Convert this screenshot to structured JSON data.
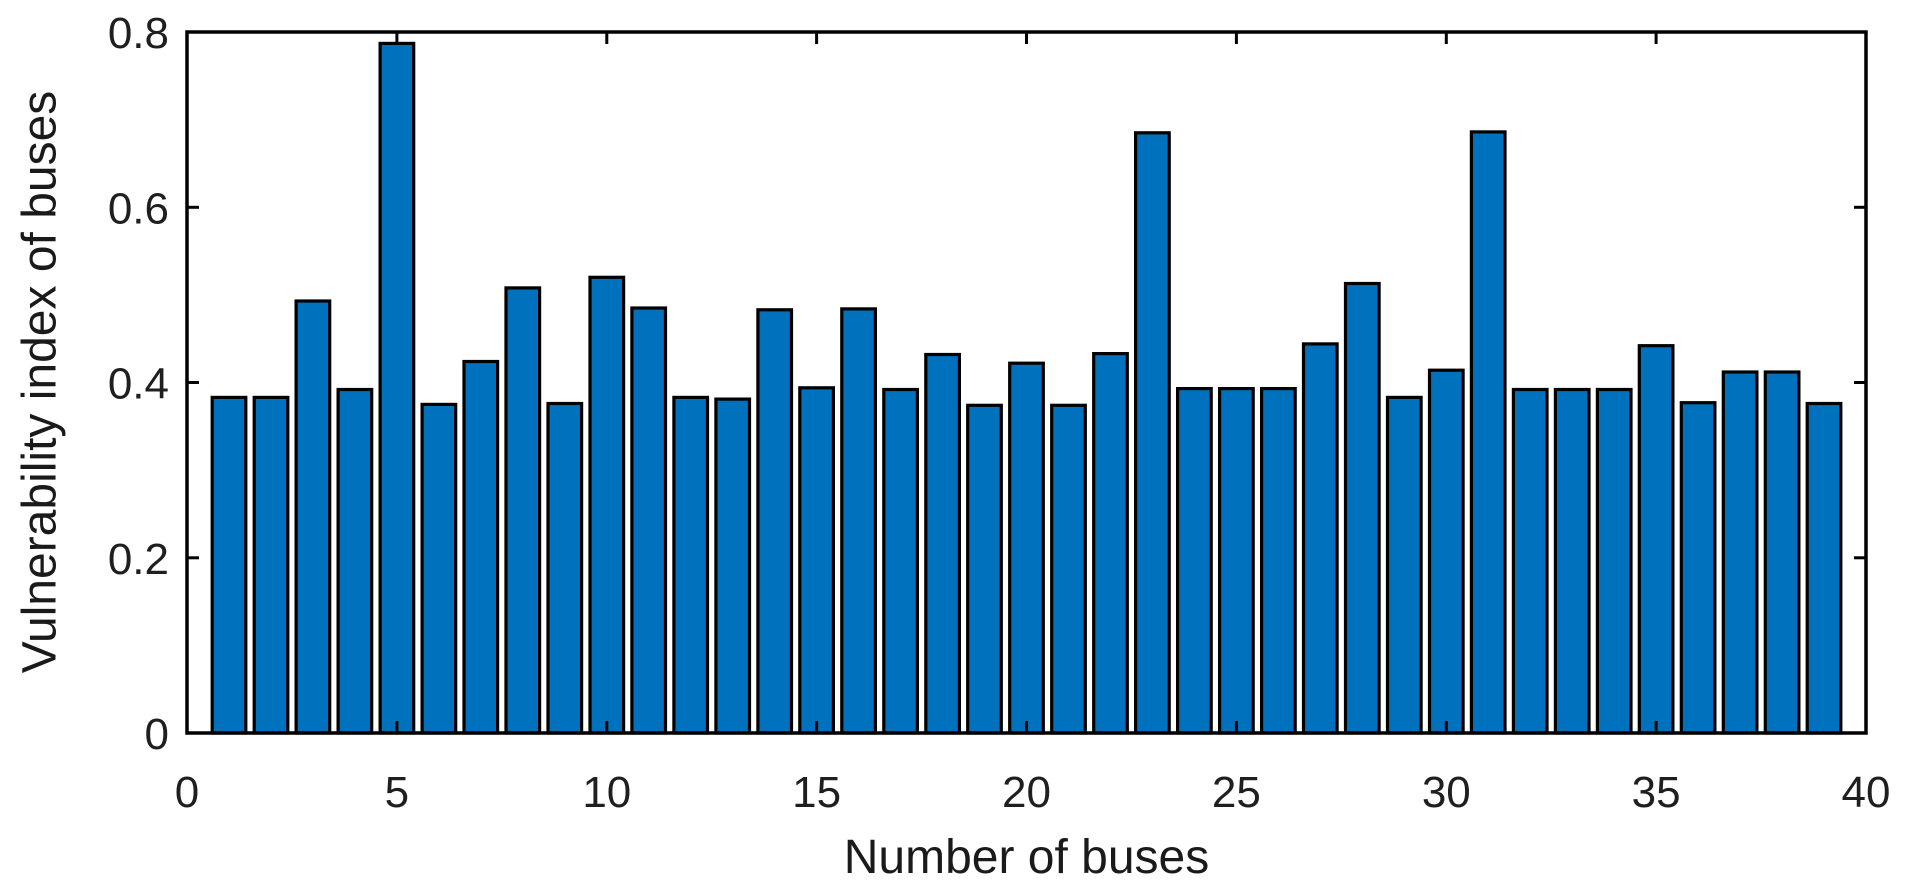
{
  "chart_data": {
    "type": "bar",
    "title": "",
    "xlabel": "Number of buses",
    "ylabel": "Vulnerability index of buses",
    "x": [
      1,
      2,
      3,
      4,
      5,
      6,
      7,
      8,
      9,
      10,
      11,
      12,
      13,
      14,
      15,
      16,
      17,
      18,
      19,
      20,
      21,
      22,
      23,
      24,
      25,
      26,
      27,
      28,
      29,
      30,
      31,
      32,
      33,
      34,
      35,
      36,
      37,
      38,
      39
    ],
    "values": [
      0.383,
      0.383,
      0.493,
      0.392,
      0.787,
      0.375,
      0.424,
      0.508,
      0.376,
      0.52,
      0.485,
      0.383,
      0.381,
      0.483,
      0.394,
      0.484,
      0.392,
      0.432,
      0.374,
      0.422,
      0.374,
      0.433,
      0.685,
      0.393,
      0.393,
      0.393,
      0.444,
      0.513,
      0.383,
      0.414,
      0.686,
      0.392,
      0.392,
      0.392,
      0.442,
      0.377,
      0.412,
      0.412,
      0.376
    ],
    "xlim": [
      0,
      40
    ],
    "ylim": [
      0,
      0.8
    ],
    "xticks": [
      0,
      5,
      10,
      15,
      20,
      25,
      30,
      35,
      40
    ],
    "xtick_labels": [
      "0",
      "5",
      "10",
      "15",
      "20",
      "25",
      "30",
      "35",
      "40"
    ],
    "yticks": [
      0,
      0.2,
      0.4,
      0.6,
      0.8
    ],
    "ytick_labels": [
      "0",
      "0.2",
      "0.4",
      "0.6",
      "0.8"
    ],
    "bar_width_fraction": 0.8,
    "bar_color": "#0072BD",
    "bar_edge_color": "#000000",
    "axis_color": "#000000",
    "tick_label_color": "#1f1f1f",
    "grid": false,
    "legend_position": "none",
    "background_color": "#ffffff"
  }
}
